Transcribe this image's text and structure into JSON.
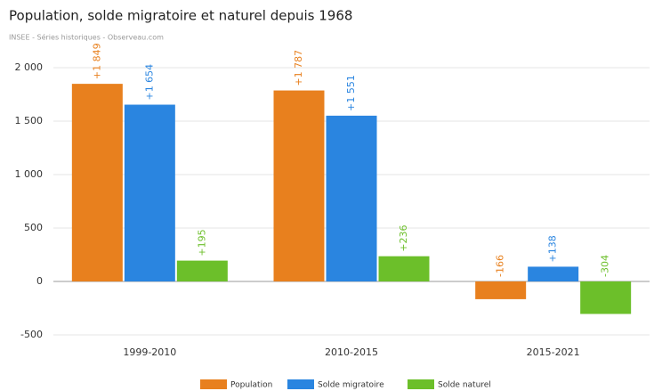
{
  "chart_data": {
    "type": "bar",
    "title": "Population, solde migratoire et naturel depuis 1968",
    "subtitle": "INSEE - Séries historiques - Observeau.com",
    "categories": [
      "1999-2010",
      "2010-2015",
      "2015-2021"
    ],
    "series": [
      {
        "name": "Population",
        "color": "#e8801e",
        "values": [
          1849,
          1787,
          -166
        ],
        "value_labels": [
          "+1 849",
          "+1 787",
          "-166"
        ]
      },
      {
        "name": "Solde migratoire",
        "color": "#2a85e0",
        "values": [
          1654,
          1551,
          138
        ],
        "value_labels": [
          "+1 654",
          "+1 551",
          "+138"
        ]
      },
      {
        "name": "Solde naturel",
        "color": "#6cbf2a",
        "values": [
          195,
          236,
          -304
        ],
        "value_labels": [
          "+195",
          "+236",
          "-304"
        ]
      }
    ],
    "ylim": [
      -600,
      2100
    ],
    "yticks": [
      {
        "value": 2000,
        "label": "2 000"
      },
      {
        "value": 1500,
        "label": "1 500"
      },
      {
        "value": 1000,
        "label": "1 000"
      },
      500,
      0,
      -500
    ],
    "grid": true,
    "legend": "bottom"
  }
}
